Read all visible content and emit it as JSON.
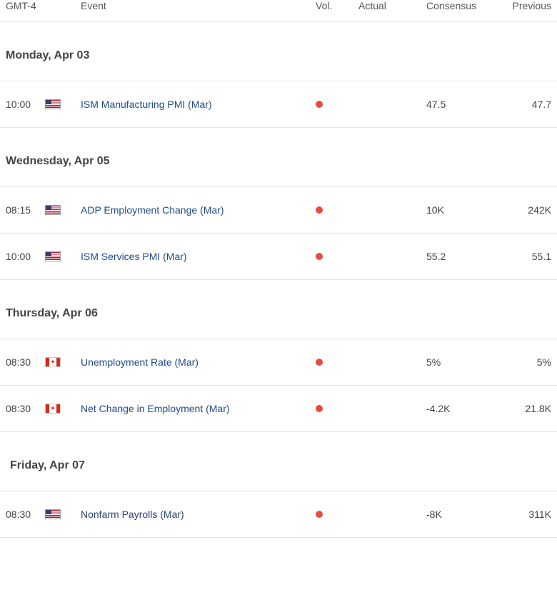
{
  "columns": {
    "time": "GMT-4",
    "event": "Event",
    "vol": "Vol.",
    "actual": "Actual",
    "consensus": "Consensus",
    "previous": "Previous"
  },
  "colors": {
    "vol_dot": "#e84c3d",
    "event_link": "#1e4a8a",
    "border": "#e5e5e5",
    "text": "#4a4a4a"
  },
  "days": [
    {
      "label": "Monday, Apr 03",
      "events": [
        {
          "time": "10:00",
          "flag": "us",
          "name": "ISM Manufacturing PMI (Mar)",
          "actual": "",
          "consensus": "47.5",
          "previous": "47.7"
        }
      ]
    },
    {
      "label": "Wednesday, Apr 05",
      "events": [
        {
          "time": "08:15",
          "flag": "us",
          "name": "ADP Employment Change (Mar)",
          "actual": "",
          "consensus": "10K",
          "previous": "242K"
        },
        {
          "time": "10:00",
          "flag": "us",
          "name": "ISM Services PMI (Mar)",
          "actual": "",
          "consensus": "55.2",
          "previous": "55.1"
        }
      ]
    },
    {
      "label": "Thursday, Apr 06",
      "events": [
        {
          "time": "08:30",
          "flag": "ca",
          "name": "Unemployment Rate (Mar)",
          "actual": "",
          "consensus": "5%",
          "previous": "5%"
        },
        {
          "time": "08:30",
          "flag": "ca",
          "name": "Net Change in Employment (Mar)",
          "actual": "",
          "consensus": "-4.2K",
          "previous": "21.8K"
        }
      ]
    },
    {
      "label": "Friday, Apr 07",
      "indent": true,
      "events": [
        {
          "time": "08:30",
          "flag": "us",
          "name": "Nonfarm Payrolls (Mar)",
          "actual": "",
          "consensus": "-8K",
          "previous": "311K",
          "alt_color": true
        }
      ]
    }
  ]
}
